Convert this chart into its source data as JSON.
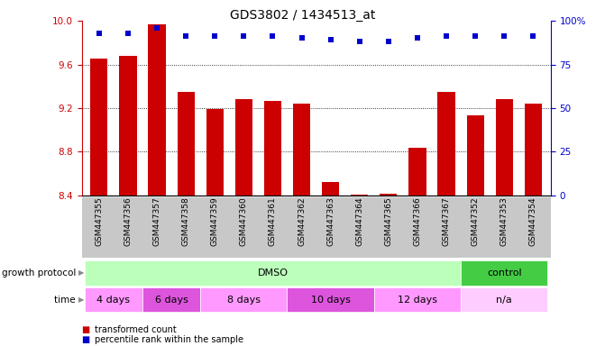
{
  "title": "GDS3802 / 1434513_at",
  "samples": [
    "GSM447355",
    "GSM447356",
    "GSM447357",
    "GSM447358",
    "GSM447359",
    "GSM447360",
    "GSM447361",
    "GSM447362",
    "GSM447363",
    "GSM447364",
    "GSM447365",
    "GSM447366",
    "GSM447367",
    "GSM447352",
    "GSM447353",
    "GSM447354"
  ],
  "bar_values": [
    9.65,
    9.68,
    9.97,
    9.35,
    9.19,
    9.28,
    9.27,
    9.24,
    8.52,
    8.41,
    8.42,
    8.84,
    9.35,
    9.13,
    9.28,
    9.24
  ],
  "dot_values": [
    93,
    93,
    96,
    91,
    91,
    91,
    91,
    90,
    89,
    88,
    88,
    90,
    91,
    91,
    91,
    91
  ],
  "ylim_left": [
    8.4,
    10.0
  ],
  "ylim_right": [
    0,
    100
  ],
  "yticks_left": [
    8.4,
    8.8,
    9.2,
    9.6,
    10.0
  ],
  "yticks_right": [
    0,
    25,
    50,
    75,
    100
  ],
  "ytick_labels_right": [
    "0",
    "25",
    "50",
    "75",
    "100%"
  ],
  "bar_color": "#cc0000",
  "dot_color": "#0000cc",
  "grid_values": [
    8.8,
    9.2,
    9.6
  ],
  "gp_groups": [
    {
      "label": "DMSO",
      "start": 0,
      "end": 12,
      "color": "#bbffbb"
    },
    {
      "label": "control",
      "start": 13,
      "end": 15,
      "color": "#44cc44"
    }
  ],
  "time_groups": [
    {
      "label": "4 days",
      "start": 0,
      "end": 1,
      "color": "#ff99ff"
    },
    {
      "label": "6 days",
      "start": 2,
      "end": 3,
      "color": "#dd55dd"
    },
    {
      "label": "8 days",
      "start": 4,
      "end": 6,
      "color": "#ff99ff"
    },
    {
      "label": "10 days",
      "start": 7,
      "end": 9,
      "color": "#dd55dd"
    },
    {
      "label": "12 days",
      "start": 10,
      "end": 12,
      "color": "#ff99ff"
    },
    {
      "label": "n/a",
      "start": 13,
      "end": 15,
      "color": "#ffccff"
    }
  ],
  "legend_items": [
    {
      "label": "transformed count",
      "color": "#cc0000"
    },
    {
      "label": "percentile rank within the sample",
      "color": "#0000cc"
    }
  ],
  "left_axis_color": "#cc0000",
  "right_axis_color": "#0000cc",
  "title_fontsize": 10,
  "tick_fontsize": 7.5,
  "bar_width": 0.6,
  "label_row1": "growth protocol",
  "label_row2": "time",
  "xticklabel_gray": "#c8c8c8"
}
